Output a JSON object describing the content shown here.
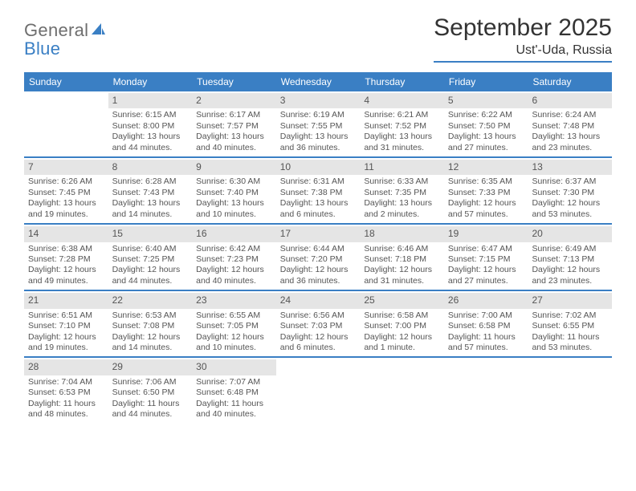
{
  "logo": {
    "word1": "General",
    "word2": "Blue"
  },
  "title": "September 2025",
  "location": "Ust'-Uda, Russia",
  "header_bg": "#3a7fc4",
  "grid_border": "#3a7fc4",
  "daynum_bg": "#e5e5e5",
  "daynames": [
    "Sunday",
    "Monday",
    "Tuesday",
    "Wednesday",
    "Thursday",
    "Friday",
    "Saturday"
  ],
  "weeks": [
    [
      null,
      {
        "n": "1",
        "sr": "Sunrise: 6:15 AM",
        "ss": "Sunset: 8:00 PM",
        "dl": "Daylight: 13 hours and 44 minutes."
      },
      {
        "n": "2",
        "sr": "Sunrise: 6:17 AM",
        "ss": "Sunset: 7:57 PM",
        "dl": "Daylight: 13 hours and 40 minutes."
      },
      {
        "n": "3",
        "sr": "Sunrise: 6:19 AM",
        "ss": "Sunset: 7:55 PM",
        "dl": "Daylight: 13 hours and 36 minutes."
      },
      {
        "n": "4",
        "sr": "Sunrise: 6:21 AM",
        "ss": "Sunset: 7:52 PM",
        "dl": "Daylight: 13 hours and 31 minutes."
      },
      {
        "n": "5",
        "sr": "Sunrise: 6:22 AM",
        "ss": "Sunset: 7:50 PM",
        "dl": "Daylight: 13 hours and 27 minutes."
      },
      {
        "n": "6",
        "sr": "Sunrise: 6:24 AM",
        "ss": "Sunset: 7:48 PM",
        "dl": "Daylight: 13 hours and 23 minutes."
      }
    ],
    [
      {
        "n": "7",
        "sr": "Sunrise: 6:26 AM",
        "ss": "Sunset: 7:45 PM",
        "dl": "Daylight: 13 hours and 19 minutes."
      },
      {
        "n": "8",
        "sr": "Sunrise: 6:28 AM",
        "ss": "Sunset: 7:43 PM",
        "dl": "Daylight: 13 hours and 14 minutes."
      },
      {
        "n": "9",
        "sr": "Sunrise: 6:30 AM",
        "ss": "Sunset: 7:40 PM",
        "dl": "Daylight: 13 hours and 10 minutes."
      },
      {
        "n": "10",
        "sr": "Sunrise: 6:31 AM",
        "ss": "Sunset: 7:38 PM",
        "dl": "Daylight: 13 hours and 6 minutes."
      },
      {
        "n": "11",
        "sr": "Sunrise: 6:33 AM",
        "ss": "Sunset: 7:35 PM",
        "dl": "Daylight: 13 hours and 2 minutes."
      },
      {
        "n": "12",
        "sr": "Sunrise: 6:35 AM",
        "ss": "Sunset: 7:33 PM",
        "dl": "Daylight: 12 hours and 57 minutes."
      },
      {
        "n": "13",
        "sr": "Sunrise: 6:37 AM",
        "ss": "Sunset: 7:30 PM",
        "dl": "Daylight: 12 hours and 53 minutes."
      }
    ],
    [
      {
        "n": "14",
        "sr": "Sunrise: 6:38 AM",
        "ss": "Sunset: 7:28 PM",
        "dl": "Daylight: 12 hours and 49 minutes."
      },
      {
        "n": "15",
        "sr": "Sunrise: 6:40 AM",
        "ss": "Sunset: 7:25 PM",
        "dl": "Daylight: 12 hours and 44 minutes."
      },
      {
        "n": "16",
        "sr": "Sunrise: 6:42 AM",
        "ss": "Sunset: 7:23 PM",
        "dl": "Daylight: 12 hours and 40 minutes."
      },
      {
        "n": "17",
        "sr": "Sunrise: 6:44 AM",
        "ss": "Sunset: 7:20 PM",
        "dl": "Daylight: 12 hours and 36 minutes."
      },
      {
        "n": "18",
        "sr": "Sunrise: 6:46 AM",
        "ss": "Sunset: 7:18 PM",
        "dl": "Daylight: 12 hours and 31 minutes."
      },
      {
        "n": "19",
        "sr": "Sunrise: 6:47 AM",
        "ss": "Sunset: 7:15 PM",
        "dl": "Daylight: 12 hours and 27 minutes."
      },
      {
        "n": "20",
        "sr": "Sunrise: 6:49 AM",
        "ss": "Sunset: 7:13 PM",
        "dl": "Daylight: 12 hours and 23 minutes."
      }
    ],
    [
      {
        "n": "21",
        "sr": "Sunrise: 6:51 AM",
        "ss": "Sunset: 7:10 PM",
        "dl": "Daylight: 12 hours and 19 minutes."
      },
      {
        "n": "22",
        "sr": "Sunrise: 6:53 AM",
        "ss": "Sunset: 7:08 PM",
        "dl": "Daylight: 12 hours and 14 minutes."
      },
      {
        "n": "23",
        "sr": "Sunrise: 6:55 AM",
        "ss": "Sunset: 7:05 PM",
        "dl": "Daylight: 12 hours and 10 minutes."
      },
      {
        "n": "24",
        "sr": "Sunrise: 6:56 AM",
        "ss": "Sunset: 7:03 PM",
        "dl": "Daylight: 12 hours and 6 minutes."
      },
      {
        "n": "25",
        "sr": "Sunrise: 6:58 AM",
        "ss": "Sunset: 7:00 PM",
        "dl": "Daylight: 12 hours and 1 minute."
      },
      {
        "n": "26",
        "sr": "Sunrise: 7:00 AM",
        "ss": "Sunset: 6:58 PM",
        "dl": "Daylight: 11 hours and 57 minutes."
      },
      {
        "n": "27",
        "sr": "Sunrise: 7:02 AM",
        "ss": "Sunset: 6:55 PM",
        "dl": "Daylight: 11 hours and 53 minutes."
      }
    ],
    [
      {
        "n": "28",
        "sr": "Sunrise: 7:04 AM",
        "ss": "Sunset: 6:53 PM",
        "dl": "Daylight: 11 hours and 48 minutes."
      },
      {
        "n": "29",
        "sr": "Sunrise: 7:06 AM",
        "ss": "Sunset: 6:50 PM",
        "dl": "Daylight: 11 hours and 44 minutes."
      },
      {
        "n": "30",
        "sr": "Sunrise: 7:07 AM",
        "ss": "Sunset: 6:48 PM",
        "dl": "Daylight: 11 hours and 40 minutes."
      },
      null,
      null,
      null,
      null
    ]
  ]
}
